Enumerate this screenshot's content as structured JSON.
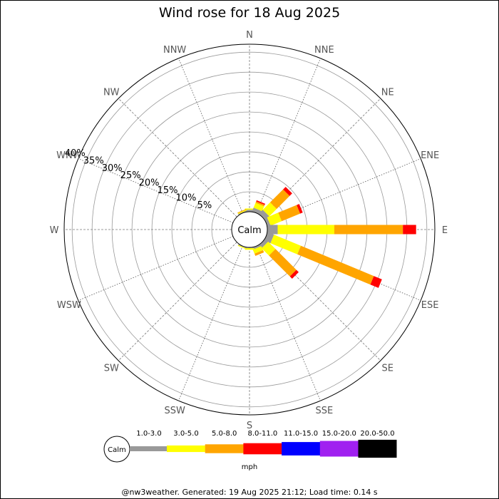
{
  "title": "Wind rose for 18 Aug 2025",
  "footer": "@nw3weather. Generated: 19 Aug 2025 21:12; Load time: 0.14 s",
  "calm_label": "Calm",
  "unit_label": "mph",
  "chart_data": {
    "type": "wind-rose",
    "title": "Wind rose for 18 Aug 2025",
    "directions": [
      "N",
      "NNE",
      "NE",
      "ENE",
      "E",
      "ESE",
      "SE",
      "SSE",
      "S",
      "SSW",
      "SW",
      "WSW",
      "W",
      "WNW",
      "NW",
      "NNW"
    ],
    "ring_labels": [
      "5%",
      "10%",
      "15%",
      "20%",
      "25%",
      "30%",
      "35%",
      "40%"
    ],
    "r_max_percent": 42,
    "speed_bins": [
      {
        "label": "1.0-3.0",
        "color": "#999999"
      },
      {
        "label": "3.0-5.0",
        "color": "#ffff00"
      },
      {
        "label": "5.0-8.0",
        "color": "#ffa500"
      },
      {
        "label": "8.0-11.0",
        "color": "#ff0000"
      },
      {
        "label": "11.0-15.0",
        "color": "#0000ff"
      },
      {
        "label": "15.0-20.0",
        "color": "#a020f0"
      },
      {
        "label": "20.0-50.0",
        "color": "#000000"
      }
    ],
    "cumulative_percent": [
      [
        0.5,
        0.8,
        0,
        0,
        0,
        0,
        0
      ],
      [
        1.0,
        2.3,
        2.7,
        3.0,
        0,
        0,
        0
      ],
      [
        1.4,
        4.0,
        8.6,
        9.5,
        0,
        0,
        0
      ],
      [
        0.8,
        3.8,
        8.8,
        9.5,
        0,
        0,
        0
      ],
      [
        2.6,
        16.8,
        34.0,
        37.3,
        0,
        0,
        0
      ],
      [
        1.7,
        9.0,
        28.8,
        31.0,
        0,
        0,
        0
      ],
      [
        1.0,
        3.6,
        11.0,
        11.8,
        0,
        0,
        0
      ],
      [
        0.5,
        1.6,
        2.2,
        0,
        0,
        0,
        0
      ],
      [
        0.2,
        0.6,
        0,
        0,
        0,
        0,
        0
      ],
      [
        0.2,
        0.4,
        0,
        0,
        0,
        0,
        0
      ],
      [
        0,
        0,
        0,
        0,
        0,
        0,
        0
      ],
      [
        0,
        0,
        0,
        0,
        0,
        0,
        0
      ],
      [
        0,
        0,
        0,
        0,
        0,
        0,
        0
      ],
      [
        0,
        0,
        0,
        0,
        0,
        0,
        0
      ],
      [
        0,
        0,
        0,
        0,
        0,
        0,
        0
      ],
      [
        0.2,
        0.4,
        0.6,
        0,
        0,
        0,
        0
      ]
    ]
  }
}
